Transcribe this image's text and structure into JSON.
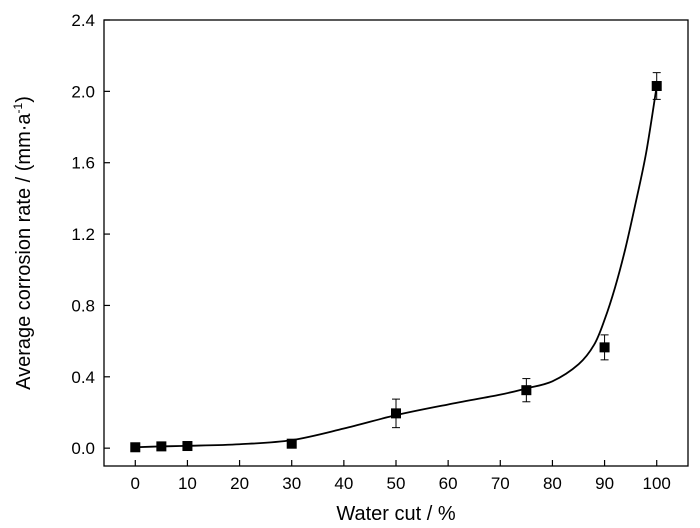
{
  "chart_data": {
    "type": "scatter",
    "xlabel": "Water cut / %",
    "ylabel_main": "Average corrosion rate / (mm·a",
    "ylabel_sup": "-1",
    "ylabel_close": ")",
    "xlim": [
      -6,
      106
    ],
    "ylim": [
      -0.1,
      2.4
    ],
    "xticks": [
      0,
      10,
      20,
      30,
      40,
      50,
      60,
      70,
      80,
      90,
      100
    ],
    "yticks": [
      0.0,
      0.4,
      0.8,
      1.2,
      1.6,
      2.0,
      2.4
    ],
    "ytick_labels": [
      "0.0",
      "0.4",
      "0.8",
      "1.2",
      "1.6",
      "2.0",
      "2.4"
    ],
    "series": [
      {
        "marker": "square",
        "color": "#000000",
        "points": [
          {
            "x": 0,
            "y": 0.005,
            "err": 0
          },
          {
            "x": 5,
            "y": 0.01,
            "err": 0
          },
          {
            "x": 10,
            "y": 0.012,
            "err": 0
          },
          {
            "x": 30,
            "y": 0.025,
            "err": 0
          },
          {
            "x": 50,
            "y": 0.195,
            "err": 0.08
          },
          {
            "x": 75,
            "y": 0.325,
            "err": 0.065
          },
          {
            "x": 90,
            "y": 0.565,
            "err": 0.07
          },
          {
            "x": 100,
            "y": 2.03,
            "err": 0.075
          }
        ]
      }
    ],
    "fit_curve": {
      "color": "#000000",
      "points": [
        [
          0,
          0.005
        ],
        [
          5,
          0.01
        ],
        [
          10,
          0.013
        ],
        [
          20,
          0.022
        ],
        [
          30,
          0.045
        ],
        [
          40,
          0.11
        ],
        [
          50,
          0.185
        ],
        [
          60,
          0.245
        ],
        [
          70,
          0.3
        ],
        [
          75,
          0.335
        ],
        [
          80,
          0.375
        ],
        [
          85,
          0.47
        ],
        [
          88,
          0.58
        ],
        [
          90,
          0.72
        ],
        [
          92,
          0.9
        ],
        [
          94,
          1.12
        ],
        [
          96,
          1.38
        ],
        [
          98,
          1.66
        ],
        [
          100,
          2.03
        ]
      ]
    }
  }
}
